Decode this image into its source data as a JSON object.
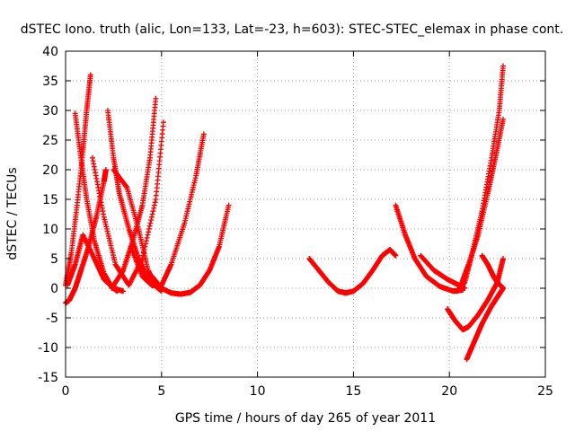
{
  "chart_data": {
    "type": "scatter",
    "title": "dSTEC Iono. truth (alic, Lon=133, Lat=-23, h=603): STEC-STEC_elemax in phase cont.",
    "xlabel": "GPS time / hours of day 265 of year 2011",
    "ylabel": "dSTEC  / TECUs",
    "xlim": [
      0,
      25
    ],
    "ylim": [
      -15,
      40
    ],
    "x_ticks": [
      "0",
      "5",
      "10",
      "15",
      "20",
      "25"
    ],
    "y_ticks": [
      "-15",
      "-10",
      "-5",
      "0",
      "5",
      "10",
      "15",
      "20",
      "25",
      "30",
      "35",
      "40"
    ],
    "grid": true,
    "marker": "+",
    "series_color": "#ff0000",
    "series": [
      {
        "x": [
          0.5,
          0.8,
          1.1,
          1.5,
          2.0,
          2.4,
          2.7
        ],
        "y": [
          29.5,
          22,
          15,
          8,
          2.5,
          0.2,
          -0.5
        ]
      },
      {
        "x": [
          0.0,
          0.3,
          0.6,
          0.9,
          1.1,
          1.3
        ],
        "y": [
          0.5,
          6,
          14,
          23,
          30,
          36
        ]
      },
      {
        "x": [
          0.0,
          0.2,
          0.5,
          0.8,
          1.2,
          1.6,
          2.0,
          2.1
        ],
        "y": [
          -2.5,
          -2,
          0,
          3,
          7,
          12,
          18,
          20
        ]
      },
      {
        "x": [
          0.1,
          0.5,
          0.9,
          1.5,
          2.0,
          2.5,
          3.0
        ],
        "y": [
          0.5,
          4,
          9,
          5,
          1.5,
          0,
          -0.5
        ]
      },
      {
        "x": [
          1.4,
          2.0,
          2.6,
          3.3,
          4.0,
          4.7,
          5.1
        ],
        "y": [
          22,
          12,
          4,
          0.5,
          5,
          15,
          28
        ]
      },
      {
        "x": [
          2.2,
          2.5,
          2.8,
          3.3,
          3.8,
          4.3,
          5.0
        ],
        "y": [
          30,
          22,
          16,
          10,
          5,
          1.5,
          -0.5
        ]
      },
      {
        "x": [
          2.5,
          3.2,
          3.8,
          4.3,
          4.8,
          5.0
        ],
        "y": [
          20,
          17,
          10,
          3,
          0,
          -0.2
        ]
      },
      {
        "x": [
          2.4,
          3.0,
          3.5,
          4.0,
          4.4,
          4.7
        ],
        "y": [
          0,
          3,
          8,
          14,
          22,
          32
        ]
      },
      {
        "x": [
          3.4,
          4.0,
          4.5,
          5.0,
          5.5,
          6.2,
          6.8,
          7.2
        ],
        "y": [
          7,
          2,
          0.5,
          0.5,
          4,
          11,
          19,
          26
        ]
      },
      {
        "x": [
          4.5,
          5.0,
          5.5,
          6.0,
          6.5,
          7.0,
          7.5,
          8.0,
          8.5
        ],
        "y": [
          2,
          0,
          -0.8,
          -1,
          -0.7,
          0.5,
          3,
          7,
          14
        ]
      },
      {
        "x": [
          12.7,
          13.2,
          13.7,
          14.2,
          14.6,
          15.0,
          15.5,
          16.0,
          16.5,
          16.9,
          17.2
        ],
        "y": [
          5,
          3,
          1,
          -0.5,
          -0.8,
          -0.5,
          0.8,
          3,
          5.5,
          6.5,
          5.5
        ]
      },
      {
        "x": [
          17.2,
          17.7,
          18.2,
          18.8,
          19.5,
          20.2,
          20.7
        ],
        "y": [
          14,
          9,
          5,
          2,
          0.3,
          -0.5,
          -0.3
        ]
      },
      {
        "x": [
          18.5,
          19.2,
          19.9,
          20.5,
          20.8
        ],
        "y": [
          5.5,
          3,
          1.5,
          0.5,
          0
        ]
      },
      {
        "x": [
          20.4,
          20.8,
          21.2,
          21.7,
          22.2,
          22.6,
          22.8
        ],
        "y": [
          -0.5,
          1,
          6,
          13,
          22,
          30,
          37.5
        ]
      },
      {
        "x": [
          20.6,
          21.0,
          21.5,
          22.0,
          22.4,
          22.8
        ],
        "y": [
          0.5,
          4,
          9,
          16,
          22,
          28.5
        ]
      },
      {
        "x": [
          19.9,
          20.3,
          20.7,
          21.0,
          21.5,
          22.0,
          22.5,
          22.8
        ],
        "y": [
          -3.5,
          -5.5,
          -7,
          -6.5,
          -4.5,
          -2,
          1,
          5
        ]
      },
      {
        "x": [
          20.9,
          21.3,
          21.7,
          22.2,
          22.5,
          22.8
        ],
        "y": [
          -12,
          -9,
          -6,
          -3,
          -1.5,
          0
        ]
      },
      {
        "x": [
          21.7,
          22.0,
          22.3,
          22.5,
          22.8
        ],
        "y": [
          5.5,
          4,
          2,
          1,
          0
        ]
      }
    ]
  }
}
